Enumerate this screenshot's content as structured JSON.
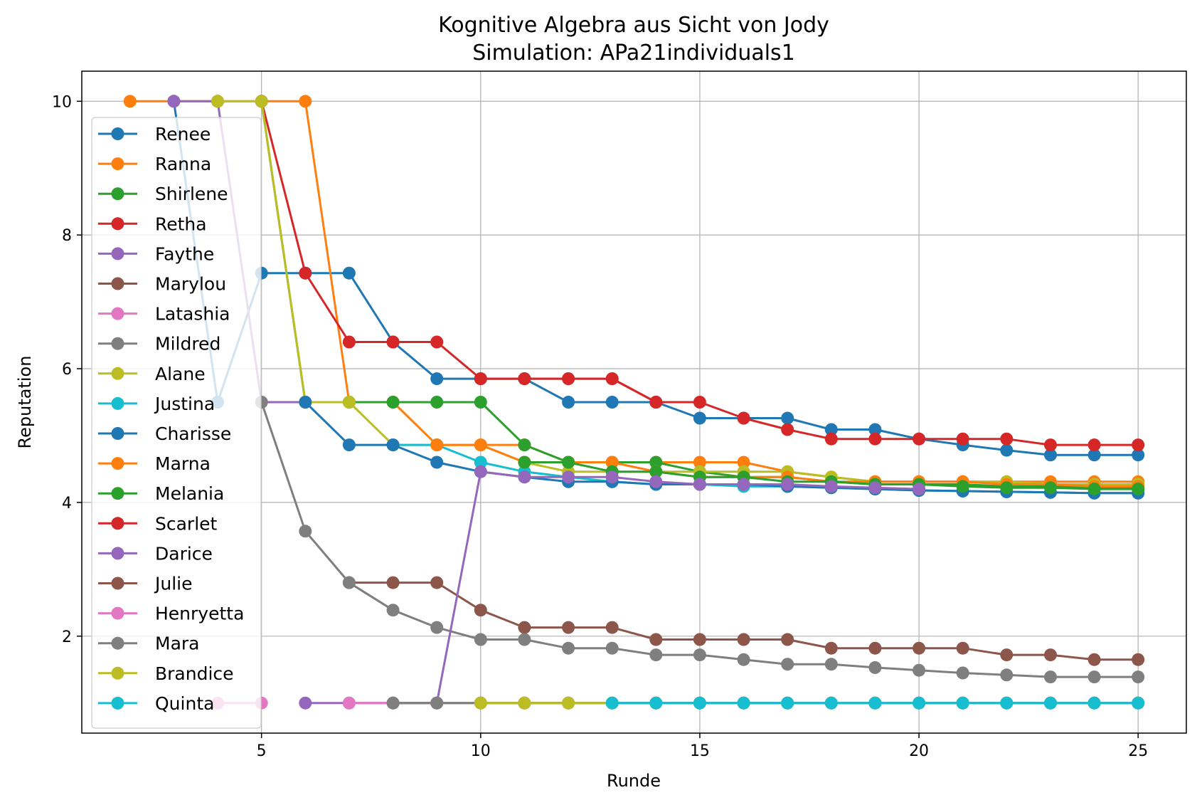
{
  "chart_data": {
    "type": "line",
    "title": "Kognitive Algebra aus Sicht von Jody",
    "subtitle": "Simulation: APa21individuals1",
    "xlabel": "Runde",
    "ylabel": "Reputation",
    "xlim": [
      0.9,
      26.1
    ],
    "ylim": [
      0.55,
      10.45
    ],
    "xticks": [
      5,
      10,
      15,
      20,
      25
    ],
    "yticks": [
      2,
      4,
      6,
      8,
      10
    ],
    "grid": true,
    "legend_position": "upper-left",
    "series": [
      {
        "name": "Renee",
        "color": "#1f77b4",
        "x": [
          3,
          4,
          5,
          6,
          7,
          8,
          9,
          10,
          11,
          12,
          13,
          14,
          15,
          16,
          17,
          18,
          19,
          20,
          21,
          22,
          23,
          24,
          25
        ],
        "y": [
          10,
          5.5,
          7.43,
          7.43,
          7.43,
          6.4,
          5.85,
          5.85,
          5.85,
          5.5,
          5.5,
          5.5,
          5.26,
          5.26,
          5.26,
          5.09,
          5.09,
          4.95,
          4.86,
          4.78,
          4.71,
          4.71,
          4.71
        ]
      },
      {
        "name": "Ranna",
        "color": "#ff7f0e",
        "x": [
          2,
          3,
          4,
          5,
          6,
          7,
          8,
          9,
          10,
          11,
          12,
          13,
          14,
          15,
          16,
          17,
          18,
          19,
          20,
          21,
          22,
          23,
          24,
          25
        ],
        "y": [
          10,
          10,
          10,
          10,
          10,
          5.5,
          5.5,
          4.86,
          4.86,
          4.86,
          4.6,
          4.6,
          4.6,
          4.6,
          4.6,
          4.46,
          4.38,
          4.31,
          4.31,
          4.31,
          4.31,
          4.31,
          4.31,
          4.31
        ]
      },
      {
        "name": "Shirlene",
        "color": "#2ca02c",
        "x": [
          5,
          6,
          7,
          8,
          9,
          10,
          11,
          12,
          13,
          14,
          15,
          16,
          17,
          18,
          19,
          20,
          21,
          22,
          23,
          24,
          25
        ],
        "y": [
          10,
          5.5,
          5.5,
          5.5,
          5.5,
          5.5,
          4.86,
          4.6,
          4.6,
          4.6,
          4.46,
          4.38,
          4.38,
          4.31,
          4.27,
          4.27,
          4.27,
          4.24,
          4.24,
          4.22,
          4.22
        ]
      },
      {
        "name": "Retha",
        "color": "#d62728",
        "x": [
          5,
          6,
          7,
          8,
          9,
          10,
          11,
          12,
          13,
          14,
          15,
          16,
          17,
          18,
          19,
          20,
          21,
          22,
          23,
          24,
          25
        ],
        "y": [
          10,
          7.43,
          6.4,
          6.4,
          6.4,
          5.85,
          5.85,
          5.85,
          5.85,
          5.5,
          5.5,
          5.26,
          5.09,
          4.95,
          4.95,
          4.95,
          4.95,
          4.95,
          4.86,
          4.86,
          4.86
        ]
      },
      {
        "name": "Faythe",
        "color": "#9467bd",
        "x": [
          3,
          4,
          5,
          6
        ],
        "y": [
          10,
          10,
          5.5,
          5.5
        ]
      },
      {
        "name": "Marylou",
        "color": "#8c564b",
        "x": [
          7,
          8,
          9,
          10,
          11,
          12,
          13,
          14,
          15,
          16,
          17,
          18,
          19,
          20,
          21,
          22,
          23,
          24,
          25
        ],
        "y": [
          2.8,
          2.8,
          2.8,
          2.39,
          2.13,
          2.13,
          2.13,
          1.95,
          1.95,
          1.95,
          1.95,
          1.82,
          1.82,
          1.82,
          1.82,
          1.72,
          1.72,
          1.65,
          1.65
        ]
      },
      {
        "name": "Latashia",
        "color": "#e377c2",
        "x": [
          4,
          5
        ],
        "y": [
          1,
          1
        ]
      },
      {
        "name": "Mildred",
        "color": "#7f7f7f",
        "x": [
          5,
          6,
          7,
          8,
          9,
          10,
          11,
          12,
          13,
          14,
          15,
          16,
          17,
          18,
          19,
          20,
          21,
          22,
          23,
          24,
          25
        ],
        "y": [
          5.5,
          3.57,
          2.8,
          2.39,
          2.13,
          1.95,
          1.95,
          1.82,
          1.82,
          1.72,
          1.72,
          1.65,
          1.58,
          1.58,
          1.53,
          1.49,
          1.45,
          1.42,
          1.39,
          1.39,
          1.39
        ]
      },
      {
        "name": "Alane",
        "color": "#bcbd22",
        "x": [
          4,
          5,
          6,
          7,
          8,
          9,
          10,
          11,
          12,
          13,
          14,
          15,
          16,
          17,
          18,
          19,
          20,
          21,
          22,
          23,
          24,
          25
        ],
        "y": [
          10,
          10,
          5.5,
          5.5,
          4.86,
          4.86,
          4.86,
          4.6,
          4.46,
          4.46,
          4.46,
          4.46,
          4.46,
          4.46,
          4.38,
          4.31,
          4.31,
          4.31,
          4.31,
          4.27,
          4.27,
          4.27
        ]
      },
      {
        "name": "Justina",
        "color": "#17becf",
        "x": [
          8,
          9,
          10,
          11,
          12,
          13,
          14,
          15,
          16,
          17,
          18,
          19,
          20,
          21,
          22,
          23,
          24,
          25
        ],
        "y": [
          4.86,
          4.86,
          4.6,
          4.46,
          4.38,
          4.31,
          4.27,
          4.27,
          4.24,
          4.24,
          4.22,
          4.2,
          4.18,
          4.17,
          4.16,
          4.15,
          4.14,
          4.14
        ]
      },
      {
        "name": "Charisse",
        "color": "#1f77b4",
        "x": [
          6,
          7,
          8,
          9,
          10,
          11,
          12,
          13,
          14,
          15,
          16,
          17,
          18,
          19,
          20,
          21,
          22,
          23,
          24,
          25
        ],
        "y": [
          5.5,
          4.86,
          4.86,
          4.6,
          4.46,
          4.38,
          4.31,
          4.31,
          4.27,
          4.27,
          4.27,
          4.24,
          4.22,
          4.2,
          4.18,
          4.17,
          4.16,
          4.15,
          4.14,
          4.14
        ]
      },
      {
        "name": "Marna",
        "color": "#ff7f0e",
        "x": [
          9,
          10,
          11,
          12,
          13,
          14,
          15,
          16,
          17,
          18,
          19,
          20,
          21,
          22,
          23,
          24,
          25
        ],
        "y": [
          4.86,
          4.86,
          4.6,
          4.6,
          4.6,
          4.46,
          4.38,
          4.38,
          4.38,
          4.31,
          4.31,
          4.31,
          4.31,
          4.27,
          4.27,
          4.24,
          4.24
        ]
      },
      {
        "name": "Melania",
        "color": "#2ca02c",
        "x": [
          11,
          12,
          13,
          14,
          15,
          16,
          17,
          18,
          19,
          20,
          21,
          22,
          23,
          24,
          25
        ],
        "y": [
          4.6,
          4.6,
          4.46,
          4.46,
          4.38,
          4.38,
          4.31,
          4.31,
          4.27,
          4.27,
          4.24,
          4.22,
          4.22,
          4.2,
          4.2
        ]
      },
      {
        "name": "Scarlet",
        "color": "#d62728",
        "x": [
          10,
          11,
          12,
          13,
          14
        ],
        "y": [
          5.85,
          5.85,
          5.85,
          5.85,
          5.5
        ]
      },
      {
        "name": "Darice",
        "color": "#9467bd",
        "x": [
          6,
          7,
          8,
          9,
          10,
          11,
          12,
          13,
          14,
          15,
          16,
          17,
          18,
          19,
          20
        ],
        "y": [
          1,
          1,
          1,
          1,
          4.46,
          4.38,
          4.38,
          4.38,
          4.31,
          4.27,
          4.27,
          4.27,
          4.24,
          4.22,
          4.2
        ]
      },
      {
        "name": "Julie",
        "color": "#8c564b",
        "x": [
          8,
          9,
          10,
          11,
          12,
          13,
          14,
          15,
          16,
          17,
          18,
          19,
          20,
          21,
          22,
          23,
          24,
          25
        ],
        "y": [
          1,
          1,
          1,
          1,
          1,
          1,
          1,
          1,
          1,
          1,
          1,
          1,
          1,
          1,
          1,
          1,
          1,
          1
        ]
      },
      {
        "name": "Henryetta",
        "color": "#e377c2",
        "x": [
          7,
          8
        ],
        "y": [
          1,
          1
        ]
      },
      {
        "name": "Mara",
        "color": "#7f7f7f",
        "x": [
          8,
          9,
          10,
          11,
          12,
          13,
          14,
          15,
          16,
          17,
          18,
          19,
          20,
          21,
          22,
          23,
          24,
          25
        ],
        "y": [
          1,
          1,
          1,
          1,
          1,
          1,
          1,
          1,
          1,
          1,
          1,
          1,
          1,
          1,
          1,
          1,
          1,
          1
        ]
      },
      {
        "name": "Brandice",
        "color": "#bcbd22",
        "x": [
          10,
          11,
          12,
          13
        ],
        "y": [
          1,
          1,
          1,
          1
        ]
      },
      {
        "name": "Quinta",
        "color": "#17becf",
        "x": [
          13,
          14,
          15,
          16,
          17,
          18,
          19,
          20,
          21,
          22,
          23,
          24,
          25
        ],
        "y": [
          1,
          1,
          1,
          1,
          1,
          1,
          1,
          1,
          1,
          1,
          1,
          1,
          1
        ]
      }
    ]
  }
}
